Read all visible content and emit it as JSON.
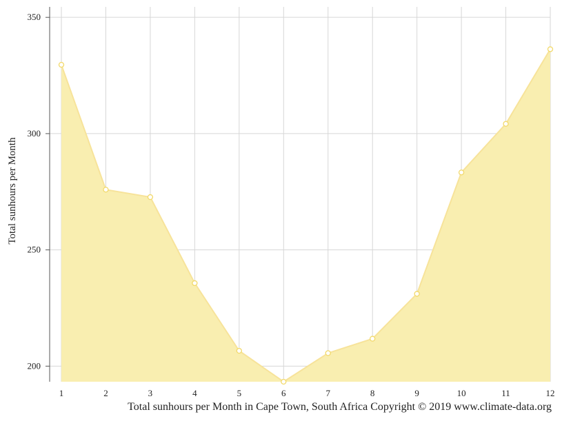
{
  "chart_data": {
    "type": "area",
    "x": [
      1,
      2,
      3,
      4,
      5,
      6,
      7,
      8,
      9,
      10,
      11,
      12
    ],
    "series": [
      {
        "values": [
          329.6,
          275.9,
          272.7,
          235.7,
          206.6,
          193.3,
          205.6,
          211.8,
          231.1,
          283.3,
          304.2,
          336.3
        ]
      }
    ],
    "xlabel": "",
    "ylabel": "Total sunhours per Month",
    "xlim": [
      1,
      12
    ],
    "ylim": [
      193.3,
      354.5
    ],
    "yticks": [
      200,
      250,
      300,
      350
    ],
    "grid": true,
    "legend": "none",
    "fill_color": "#f9eeb0",
    "line_color": "#f7e39a",
    "marker_stroke": "#f2d96a",
    "grid_color": "#d6d6d6"
  },
  "caption": "Total sunhours per Month in Cape Town, South Africa Copyright © 2019 www.climate-data.org"
}
